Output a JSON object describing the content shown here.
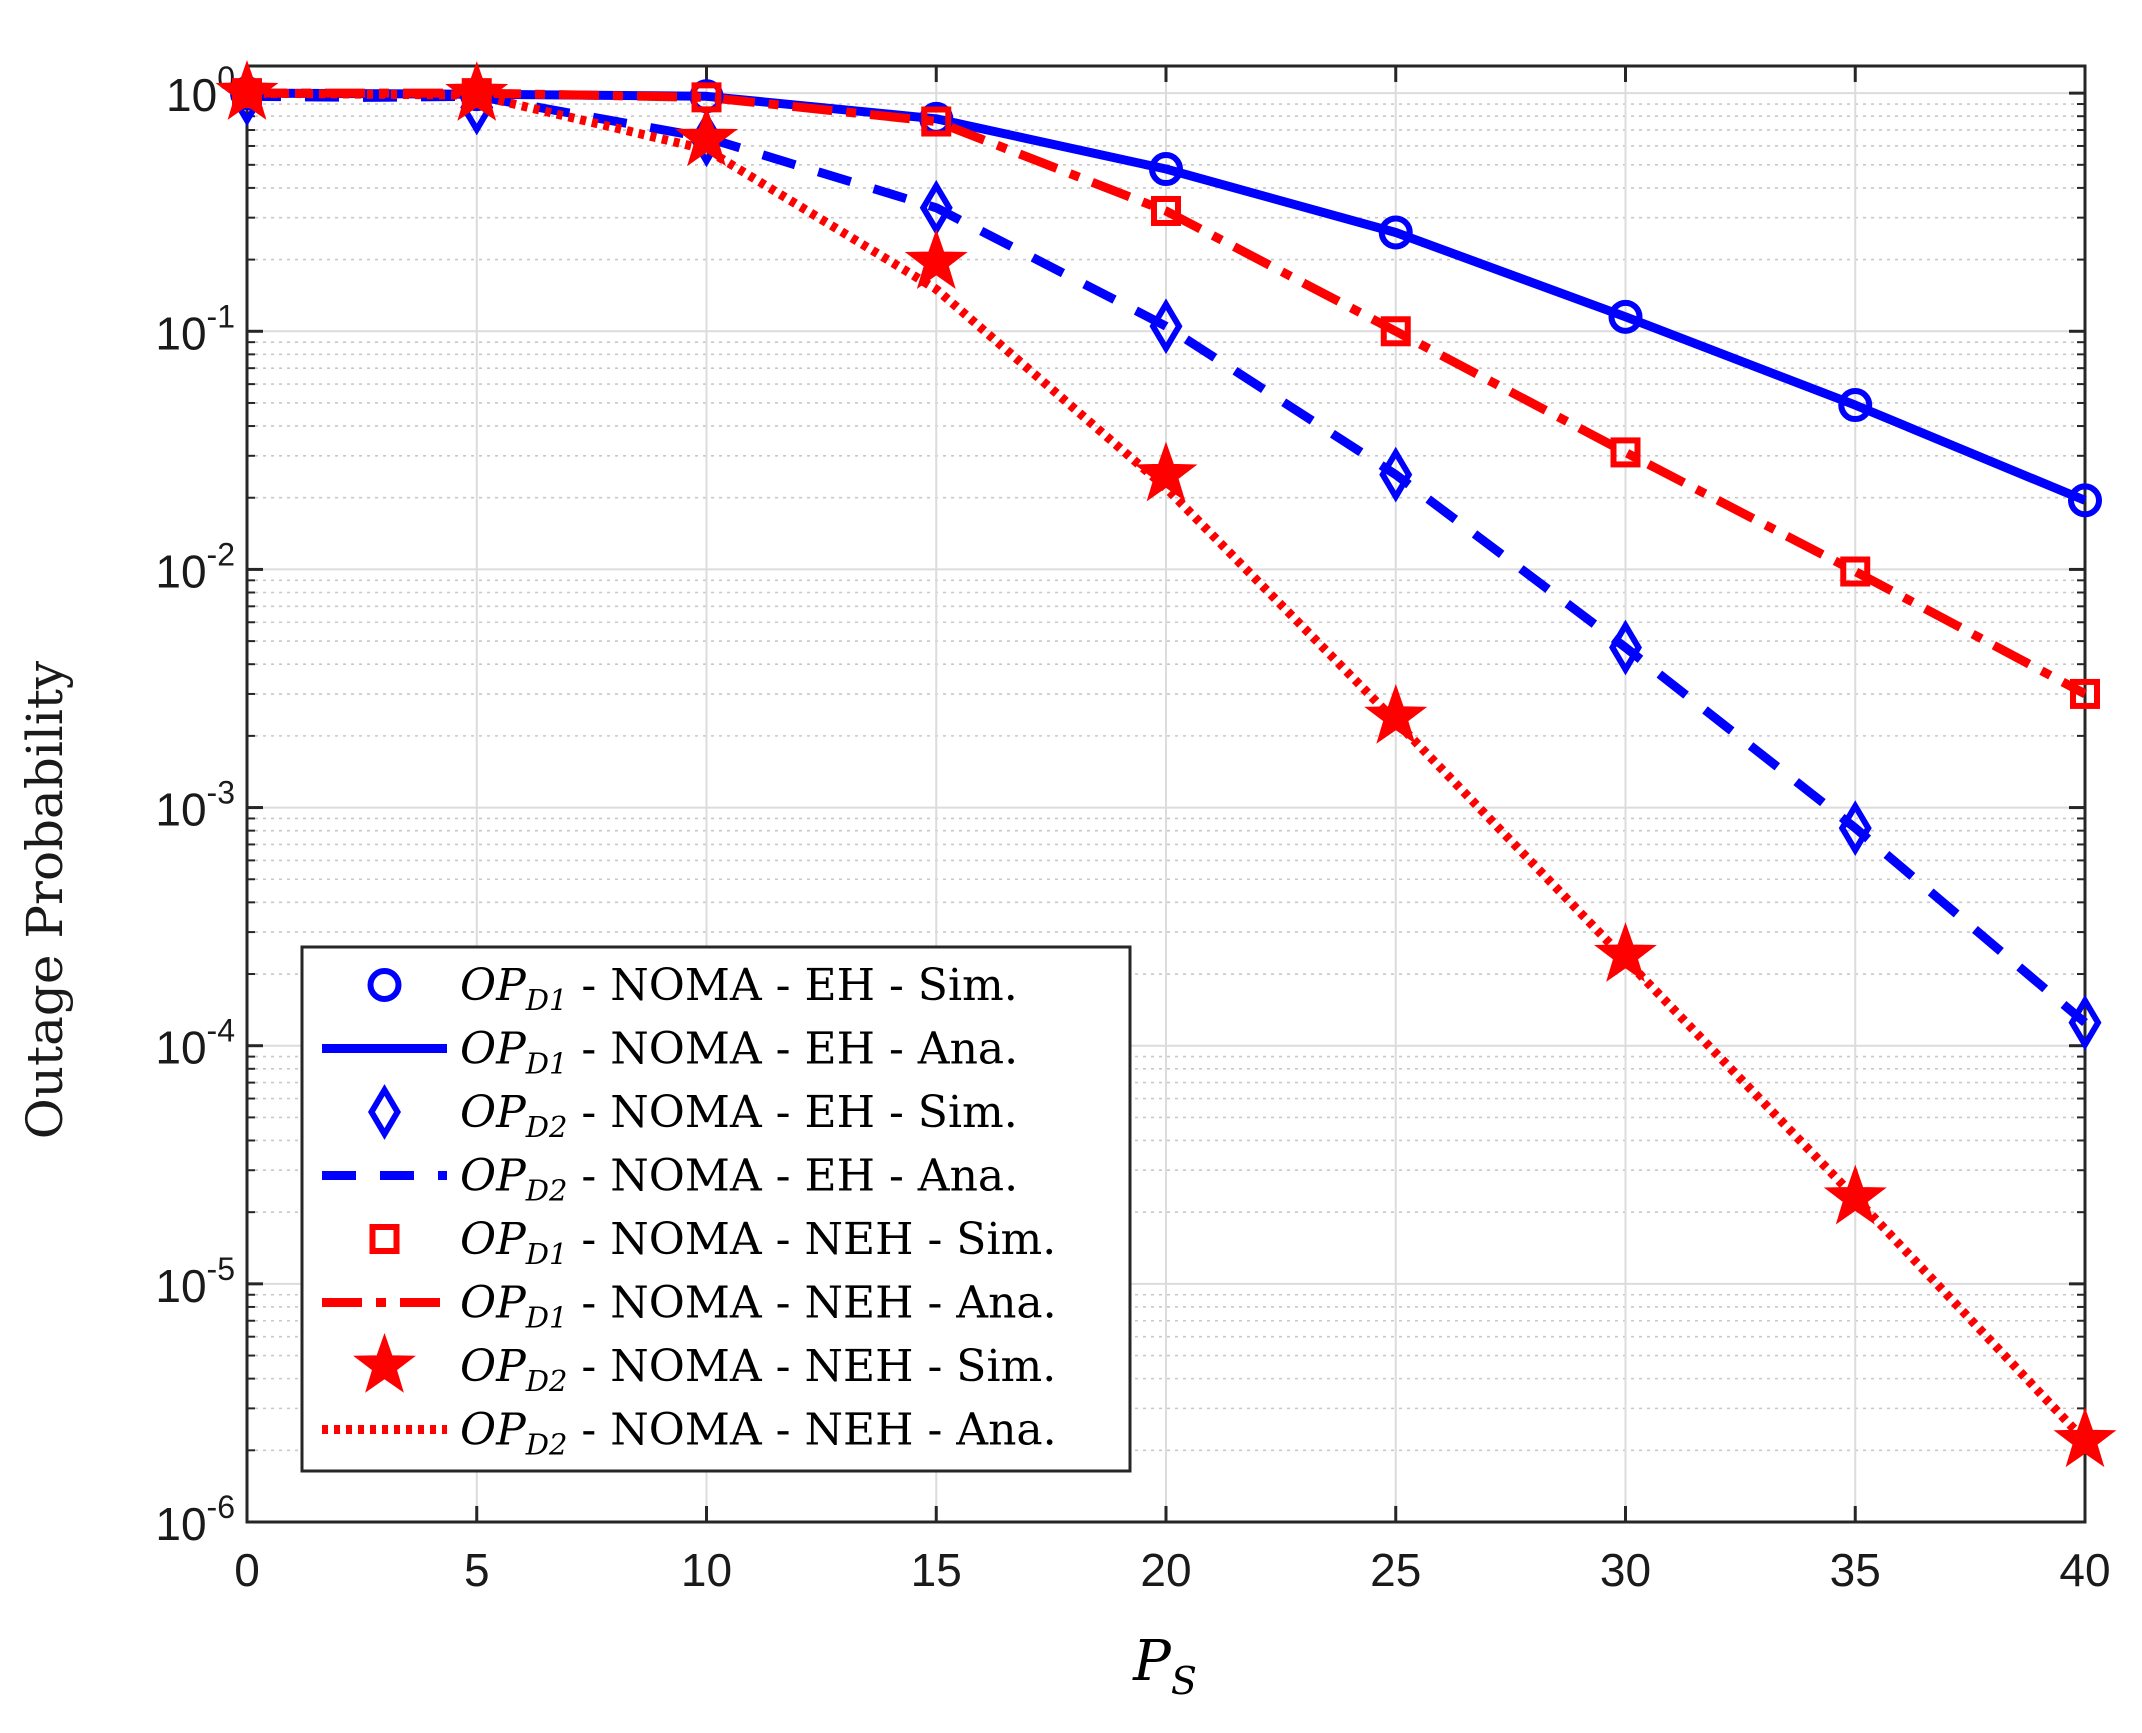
{
  "chart_data": {
    "type": "line",
    "title": "",
    "xlabel": "P",
    "xlabel_subscript": "S",
    "ylabel": "Outage Probability",
    "xscale": "linear",
    "yscale": "log",
    "xlim": [
      0,
      40
    ],
    "ylim": [
      1e-06,
      1.3
    ],
    "grid": true,
    "minor_grid": true,
    "legend_position": "lower-left",
    "x_ticks": [
      0,
      5,
      10,
      15,
      20,
      25,
      30,
      35,
      40
    ],
    "x_tick_labels": [
      "0",
      "5",
      "10",
      "15",
      "20",
      "25",
      "30",
      "35",
      "40"
    ],
    "y_ticks": [
      {
        "value": 1,
        "base": "10",
        "exponent": "0"
      },
      {
        "value": 0.1,
        "base": "10",
        "exponent": "-1"
      },
      {
        "value": 0.01,
        "base": "10",
        "exponent": "-2"
      },
      {
        "value": 0.001,
        "base": "10",
        "exponent": "-3"
      },
      {
        "value": 0.0001,
        "base": "10",
        "exponent": "-4"
      },
      {
        "value": 1e-05,
        "base": "10",
        "exponent": "-5"
      },
      {
        "value": 1e-06,
        "base": "10",
        "exponent": "-6"
      }
    ],
    "series": [
      {
        "name": "OP_D1 - NOMA - EH - Sim.",
        "label_main": "OP",
        "label_sub": "D1",
        "label_rest": " - NOMA - EH - Sim.",
        "color": "#0000ff",
        "line": "none",
        "marker": "circle",
        "x": [
          0,
          5,
          10,
          15,
          20,
          25,
          30,
          35,
          40
        ],
        "y": [
          1.0,
          0.99,
          0.97,
          0.78,
          0.48,
          0.26,
          0.115,
          0.049,
          0.0195
        ]
      },
      {
        "name": "OP_D1 - NOMA - EH - Ana.",
        "label_main": "OP",
        "label_sub": "D1",
        "label_rest": " - NOMA - EH - Ana.",
        "color": "#0000ff",
        "line": "solid",
        "marker": "none",
        "x": [
          0,
          5,
          10,
          15,
          20,
          25,
          30,
          35,
          40
        ],
        "y": [
          1.0,
          0.99,
          0.97,
          0.78,
          0.48,
          0.26,
          0.115,
          0.049,
          0.0195
        ]
      },
      {
        "name": "OP_D2 - NOMA - EH - Sim.",
        "label_main": "OP",
        "label_sub": "D2",
        "label_rest": " - NOMA - EH - Sim.",
        "color": "#0000ff",
        "line": "none",
        "marker": "diamond",
        "x": [
          0,
          5,
          10,
          15,
          20,
          25,
          30,
          35,
          40
        ],
        "y": [
          0.95,
          0.87,
          0.64,
          0.33,
          0.105,
          0.025,
          0.0047,
          0.00082,
          0.000125
        ]
      },
      {
        "name": "OP_D2 - NOMA - EH - Ana.",
        "label_main": "OP",
        "label_sub": "D2",
        "label_rest": " - NOMA - EH - Ana.",
        "color": "#0000ff",
        "line": "dashed",
        "marker": "none",
        "x": [
          0,
          2.5,
          5,
          10,
          15,
          20,
          25,
          30,
          35,
          40
        ],
        "y": [
          0.97,
          0.96,
          0.97,
          0.65,
          0.33,
          0.105,
          0.025,
          0.0047,
          0.00082,
          0.000125
        ]
      },
      {
        "name": "OP_D1 - NOMA - NEH - Sim.",
        "label_main": "OP",
        "label_sub": "D1",
        "label_rest": " - NOMA - NEH - Sim.",
        "color": "#ff0000",
        "line": "none",
        "marker": "square",
        "x": [
          0,
          5,
          10,
          15,
          20,
          25,
          30,
          35,
          40
        ],
        "y": [
          1.0,
          1.0,
          0.96,
          0.76,
          0.32,
          0.1,
          0.031,
          0.0098,
          0.003
        ]
      },
      {
        "name": "OP_D1 - NOMA - NEH - Ana.",
        "label_main": "OP",
        "label_sub": "D1",
        "label_rest": " - NOMA - NEH - Ana.",
        "color": "#ff0000",
        "line": "dashdot",
        "marker": "none",
        "x": [
          0,
          5,
          10,
          15,
          20,
          25,
          30,
          35,
          40
        ],
        "y": [
          1.0,
          1.0,
          0.96,
          0.76,
          0.32,
          0.1,
          0.031,
          0.0098,
          0.003
        ]
      },
      {
        "name": "OP_D2 - NOMA - NEH - Sim.",
        "label_main": "OP",
        "label_sub": "D2",
        "label_rest": " - NOMA - NEH - Sim.",
        "color": "#ff0000",
        "line": "none",
        "marker": "star",
        "x": [
          0,
          5,
          10,
          15,
          20,
          25,
          30,
          35,
          40
        ],
        "y": [
          1.0,
          0.99,
          0.64,
          0.195,
          0.025,
          0.0024,
          0.00024,
          2.3e-05,
          2.2e-06
        ]
      },
      {
        "name": "OP_D2 - NOMA - NEH - Ana.",
        "label_main": "OP",
        "label_sub": "D2",
        "label_rest": " - NOMA - NEH - Ana.",
        "color": "#ff0000",
        "line": "dotted",
        "marker": "none",
        "x": [
          0,
          5,
          10,
          15,
          20,
          25,
          30,
          35,
          40
        ],
        "y": [
          1.0,
          0.98,
          0.58,
          0.15,
          0.022,
          0.0023,
          0.00023,
          2.3e-05,
          2.2e-06
        ]
      }
    ]
  }
}
